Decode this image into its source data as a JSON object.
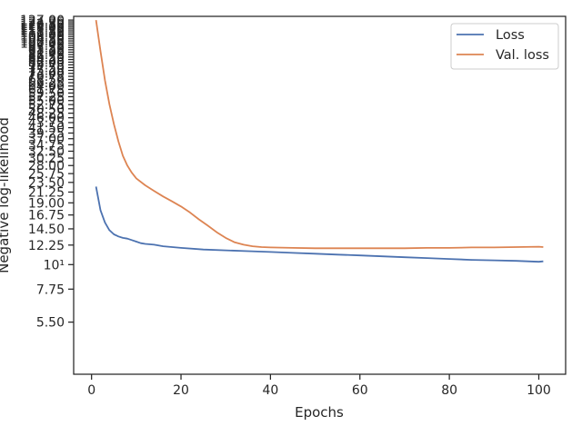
{
  "chart_data": {
    "type": "line",
    "title": "",
    "xlabel": "Epochs",
    "ylabel": "Negative log-likelihood",
    "xscale": "linear",
    "yscale": "log",
    "xlim": [
      -4,
      106
    ],
    "ylim": [
      3.2,
      132
    ],
    "x_ticks": [
      0,
      20,
      40,
      60,
      80,
      100
    ],
    "x_tick_labels": [
      "0",
      "20",
      "40",
      "60",
      "80",
      "100"
    ],
    "y_ticks": [
      5.5,
      7.75,
      10,
      12.25,
      14.5,
      16.75,
      19.0,
      21.25,
      23.5,
      25.75,
      28.0,
      30.25,
      32.5,
      34.75,
      37.0,
      39.25,
      41.5,
      43.75,
      46.0,
      48.25,
      50.5,
      52.75,
      55.0,
      57.25,
      59.5,
      61.75,
      64.0,
      66.25,
      68.5,
      70.75,
      73.0,
      75.25,
      77.5,
      79.75,
      82.0,
      84.25,
      86.5,
      88.75,
      91.0,
      93.25,
      95.5,
      97.75,
      100.0,
      102.25,
      104.5,
      106.75,
      109.0,
      111.25,
      113.5,
      115.75,
      118.0,
      120.25,
      122.5,
      124.75,
      127.0
    ],
    "y_tick_labels": [
      "5.50",
      "7.75",
      "10¹",
      "12.25",
      "14.50",
      "16.75",
      "19.00",
      "21.25",
      "23.50",
      "25.75",
      "28.00",
      "30.25",
      "32.50",
      "34.75",
      "37.00",
      "39.25",
      "41.50",
      "43.75",
      "46.00",
      "48.25",
      "50.50",
      "52.75",
      "55.00",
      "57.25",
      "59.50",
      "61.75",
      "64.00",
      "66.25",
      "68.50",
      "70.75",
      "73.00",
      "75.25",
      "77.50",
      "79.75",
      "82.00",
      "84.25",
      "86.50",
      "88.75",
      "91.00",
      "93.25",
      "95.50",
      "97.75",
      "100.00",
      "102.25",
      "104.50",
      "106.75",
      "109.00",
      "111.25",
      "113.50",
      "115.75",
      "118.00",
      "120.25",
      "122.50",
      "124.75",
      "127.00"
    ],
    "grid": false,
    "legend_position": "top-right",
    "series": [
      {
        "name": "Loss",
        "color": "#4c72b0",
        "x": [
          1,
          2,
          3,
          4,
          5,
          6,
          7,
          8,
          9,
          10,
          11,
          12,
          14,
          16,
          18,
          20,
          25,
          30,
          35,
          40,
          45,
          50,
          55,
          60,
          65,
          70,
          75,
          80,
          85,
          90,
          95,
          100,
          101
        ],
        "values": [
          22.5,
          17.6,
          15.5,
          14.3,
          13.7,
          13.4,
          13.2,
          13.1,
          12.9,
          12.7,
          12.5,
          12.4,
          12.3,
          12.1,
          12.0,
          11.9,
          11.7,
          11.6,
          11.5,
          11.4,
          11.3,
          11.2,
          11.1,
          11.0,
          10.9,
          10.8,
          10.7,
          10.6,
          10.5,
          10.45,
          10.4,
          10.3,
          10.35
        ]
      },
      {
        "name": "Val. loss",
        "color": "#dd8452",
        "x": [
          1,
          2,
          3,
          4,
          5,
          6,
          7,
          8,
          9,
          10,
          12,
          14,
          16,
          18,
          20,
          22,
          24,
          26,
          28,
          30,
          32,
          34,
          36,
          38,
          40,
          45,
          50,
          55,
          60,
          65,
          70,
          75,
          80,
          85,
          90,
          95,
          100,
          101
        ],
        "values": [
          127.0,
          92.0,
          68.0,
          53.0,
          43.0,
          36.0,
          31.0,
          28.0,
          26.0,
          24.5,
          22.8,
          21.5,
          20.3,
          19.3,
          18.3,
          17.2,
          16.0,
          15.0,
          14.0,
          13.2,
          12.6,
          12.3,
          12.1,
          12.0,
          11.95,
          11.9,
          11.85,
          11.85,
          11.85,
          11.85,
          11.85,
          11.9,
          11.9,
          11.95,
          11.95,
          12.0,
          12.05,
          12.0
        ]
      }
    ]
  }
}
